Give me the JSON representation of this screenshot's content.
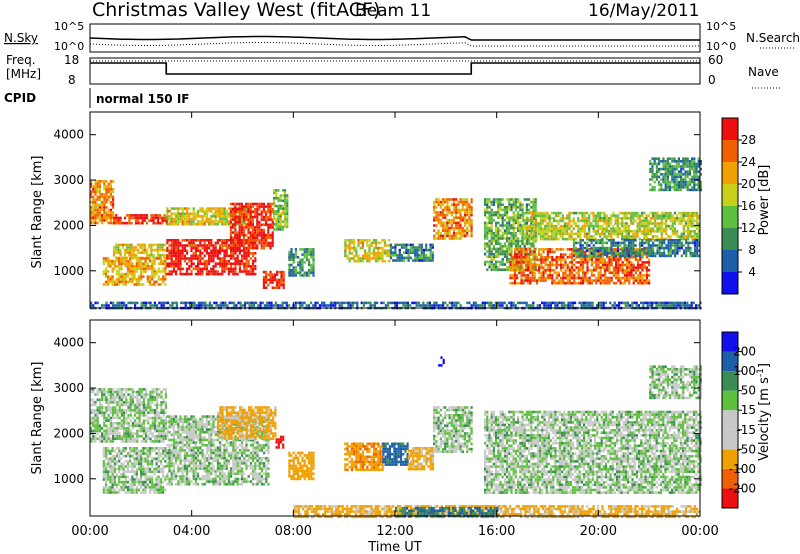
{
  "header": {
    "title": "Christmas Valley West (fitACF)",
    "beam": "Beam 11",
    "date": "16/May/2011"
  },
  "noise_panel": {
    "left_label": "N.Sky",
    "left_ticks": [
      "10^5",
      "10^0"
    ],
    "right_label": "N.Search",
    "right_ticks": [
      "10^5",
      "10^0"
    ]
  },
  "freq_panel": {
    "left_label_1": "Freq.",
    "left_label_2": "[MHz]",
    "left_ticks": [
      "18",
      "8"
    ],
    "right_label": "Nave",
    "right_ticks": [
      "60",
      "0"
    ]
  },
  "cpid": {
    "label": "CPID",
    "mode": "normal 150 IF"
  },
  "colors": {
    "power_scale": [
      "#1010ee",
      "#1d5fa8",
      "#3a8c55",
      "#5fbf3f",
      "#c8d01a",
      "#f0a000",
      "#f06000",
      "#ee1010"
    ],
    "velocity_scale": [
      "#ee1010",
      "#f06000",
      "#f0a000",
      "#c8c8c8",
      "#c8c8c8",
      "#5fbf3f",
      "#3a8c55",
      "#1d5fa8",
      "#1010ee"
    ]
  },
  "chart_data": [
    {
      "type": "heatmap",
      "name": "power",
      "xlabel": "Time UT",
      "ylabel": "Slant Range [km]",
      "x_range_hours": [
        0,
        24
      ],
      "ylim": [
        180,
        4500
      ],
      "y_ticks": [
        "1000",
        "2000",
        "3000",
        "4000"
      ],
      "colorbar": {
        "label": "Power [dB]",
        "ticks": [
          "4",
          "8",
          "12",
          "16",
          "20",
          "24",
          "28"
        ],
        "range": [
          0,
          30
        ]
      },
      "regions": [
        {
          "t0": 0.0,
          "t1": 0.9,
          "r0": 2050,
          "r1": 3000,
          "value": 22
        },
        {
          "t0": 0.9,
          "t1": 3.0,
          "r0": 2050,
          "r1": 2250,
          "value": 28
        },
        {
          "t0": 0.9,
          "t1": 3.0,
          "r0": 1300,
          "r1": 1600,
          "value": 18
        },
        {
          "t0": 0.5,
          "t1": 3.0,
          "r0": 700,
          "r1": 1300,
          "value": 20
        },
        {
          "t0": 3.0,
          "t1": 6.5,
          "r0": 900,
          "r1": 1700,
          "value": 29
        },
        {
          "t0": 3.0,
          "t1": 6.3,
          "r0": 2050,
          "r1": 2400,
          "value": 18
        },
        {
          "t0": 5.5,
          "t1": 7.2,
          "r0": 1500,
          "r1": 2500,
          "value": 28
        },
        {
          "t0": 7.2,
          "t1": 7.8,
          "r0": 1900,
          "r1": 2800,
          "value": 14
        },
        {
          "t0": 6.8,
          "t1": 7.6,
          "r0": 600,
          "r1": 1000,
          "value": 28
        },
        {
          "t0": 7.8,
          "t1": 8.8,
          "r0": 900,
          "r1": 1500,
          "value": 10
        },
        {
          "t0": 10.0,
          "t1": 11.8,
          "r0": 1200,
          "r1": 1700,
          "value": 18
        },
        {
          "t0": 11.8,
          "t1": 13.5,
          "r0": 1200,
          "r1": 1600,
          "value": 8
        },
        {
          "t0": 13.5,
          "t1": 15.0,
          "r0": 1700,
          "r1": 2600,
          "value": 22
        },
        {
          "t0": 15.5,
          "t1": 17.5,
          "r0": 1000,
          "r1": 2600,
          "value": 12
        },
        {
          "t0": 16.5,
          "t1": 22.0,
          "r0": 700,
          "r1": 1500,
          "value": 24
        },
        {
          "t0": 17.0,
          "t1": 24.0,
          "r0": 1700,
          "r1": 2300,
          "value": 16
        },
        {
          "t0": 19.0,
          "t1": 24.0,
          "r0": 1300,
          "r1": 1700,
          "value": 8
        },
        {
          "t0": 22.0,
          "t1": 24.0,
          "r0": 2800,
          "r1": 3500,
          "value": 10
        },
        {
          "t0": 0.0,
          "t1": 24.0,
          "r0": 180,
          "r1": 320,
          "value": 6
        }
      ]
    },
    {
      "type": "heatmap",
      "name": "velocity",
      "xlabel": "Time UT",
      "ylabel": "Slant Range [km]",
      "x_ticks": [
        "00:00",
        "04:00",
        "08:00",
        "12:00",
        "16:00",
        "20:00",
        "00:00"
      ],
      "x_range_hours": [
        0,
        24
      ],
      "ylim": [
        180,
        4500
      ],
      "y_ticks": [
        "1000",
        "2000",
        "3000",
        "4000"
      ],
      "colorbar": {
        "label": "Velocity [m s^-1]",
        "ticks": [
          "200",
          "100",
          "50",
          "15",
          "-15",
          "-50",
          "-100",
          "-200"
        ],
        "range": [
          -250,
          250
        ]
      },
      "regions": [
        {
          "t0": 0.0,
          "t1": 3.0,
          "r0": 1800,
          "r1": 3000,
          "value": 0
        },
        {
          "t0": 0.5,
          "t1": 3.0,
          "r0": 700,
          "r1": 1700,
          "value": 0
        },
        {
          "t0": 3.0,
          "t1": 7.0,
          "r0": 900,
          "r1": 2400,
          "value": 0
        },
        {
          "t0": 5.0,
          "t1": 7.3,
          "r0": 1900,
          "r1": 2600,
          "value": -60
        },
        {
          "t0": 7.3,
          "t1": 7.6,
          "r0": 1700,
          "r1": 1950,
          "value": -220
        },
        {
          "t0": 7.8,
          "t1": 8.8,
          "r0": 1000,
          "r1": 1600,
          "value": -80
        },
        {
          "t0": 10.0,
          "t1": 11.5,
          "r0": 1200,
          "r1": 1800,
          "value": -90
        },
        {
          "t0": 11.5,
          "t1": 12.5,
          "r0": 1300,
          "r1": 1800,
          "value": 60
        },
        {
          "t0": 12.5,
          "t1": 13.5,
          "r0": 1200,
          "r1": 1700,
          "value": -60
        },
        {
          "t0": 13.5,
          "t1": 15.0,
          "r0": 1600,
          "r1": 2600,
          "value": 0
        },
        {
          "t0": 13.7,
          "t1": 13.9,
          "r0": 3500,
          "r1": 3700,
          "value": 220
        },
        {
          "t0": 15.5,
          "t1": 24.0,
          "r0": 700,
          "r1": 2500,
          "value": 0
        },
        {
          "t0": 22.0,
          "t1": 24.0,
          "r0": 2800,
          "r1": 3500,
          "value": 0
        },
        {
          "t0": 8.0,
          "t1": 24.0,
          "r0": 180,
          "r1": 420,
          "value": -60
        },
        {
          "t0": 12.0,
          "t1": 16.0,
          "r0": 180,
          "r1": 380,
          "value": 50
        }
      ]
    }
  ]
}
